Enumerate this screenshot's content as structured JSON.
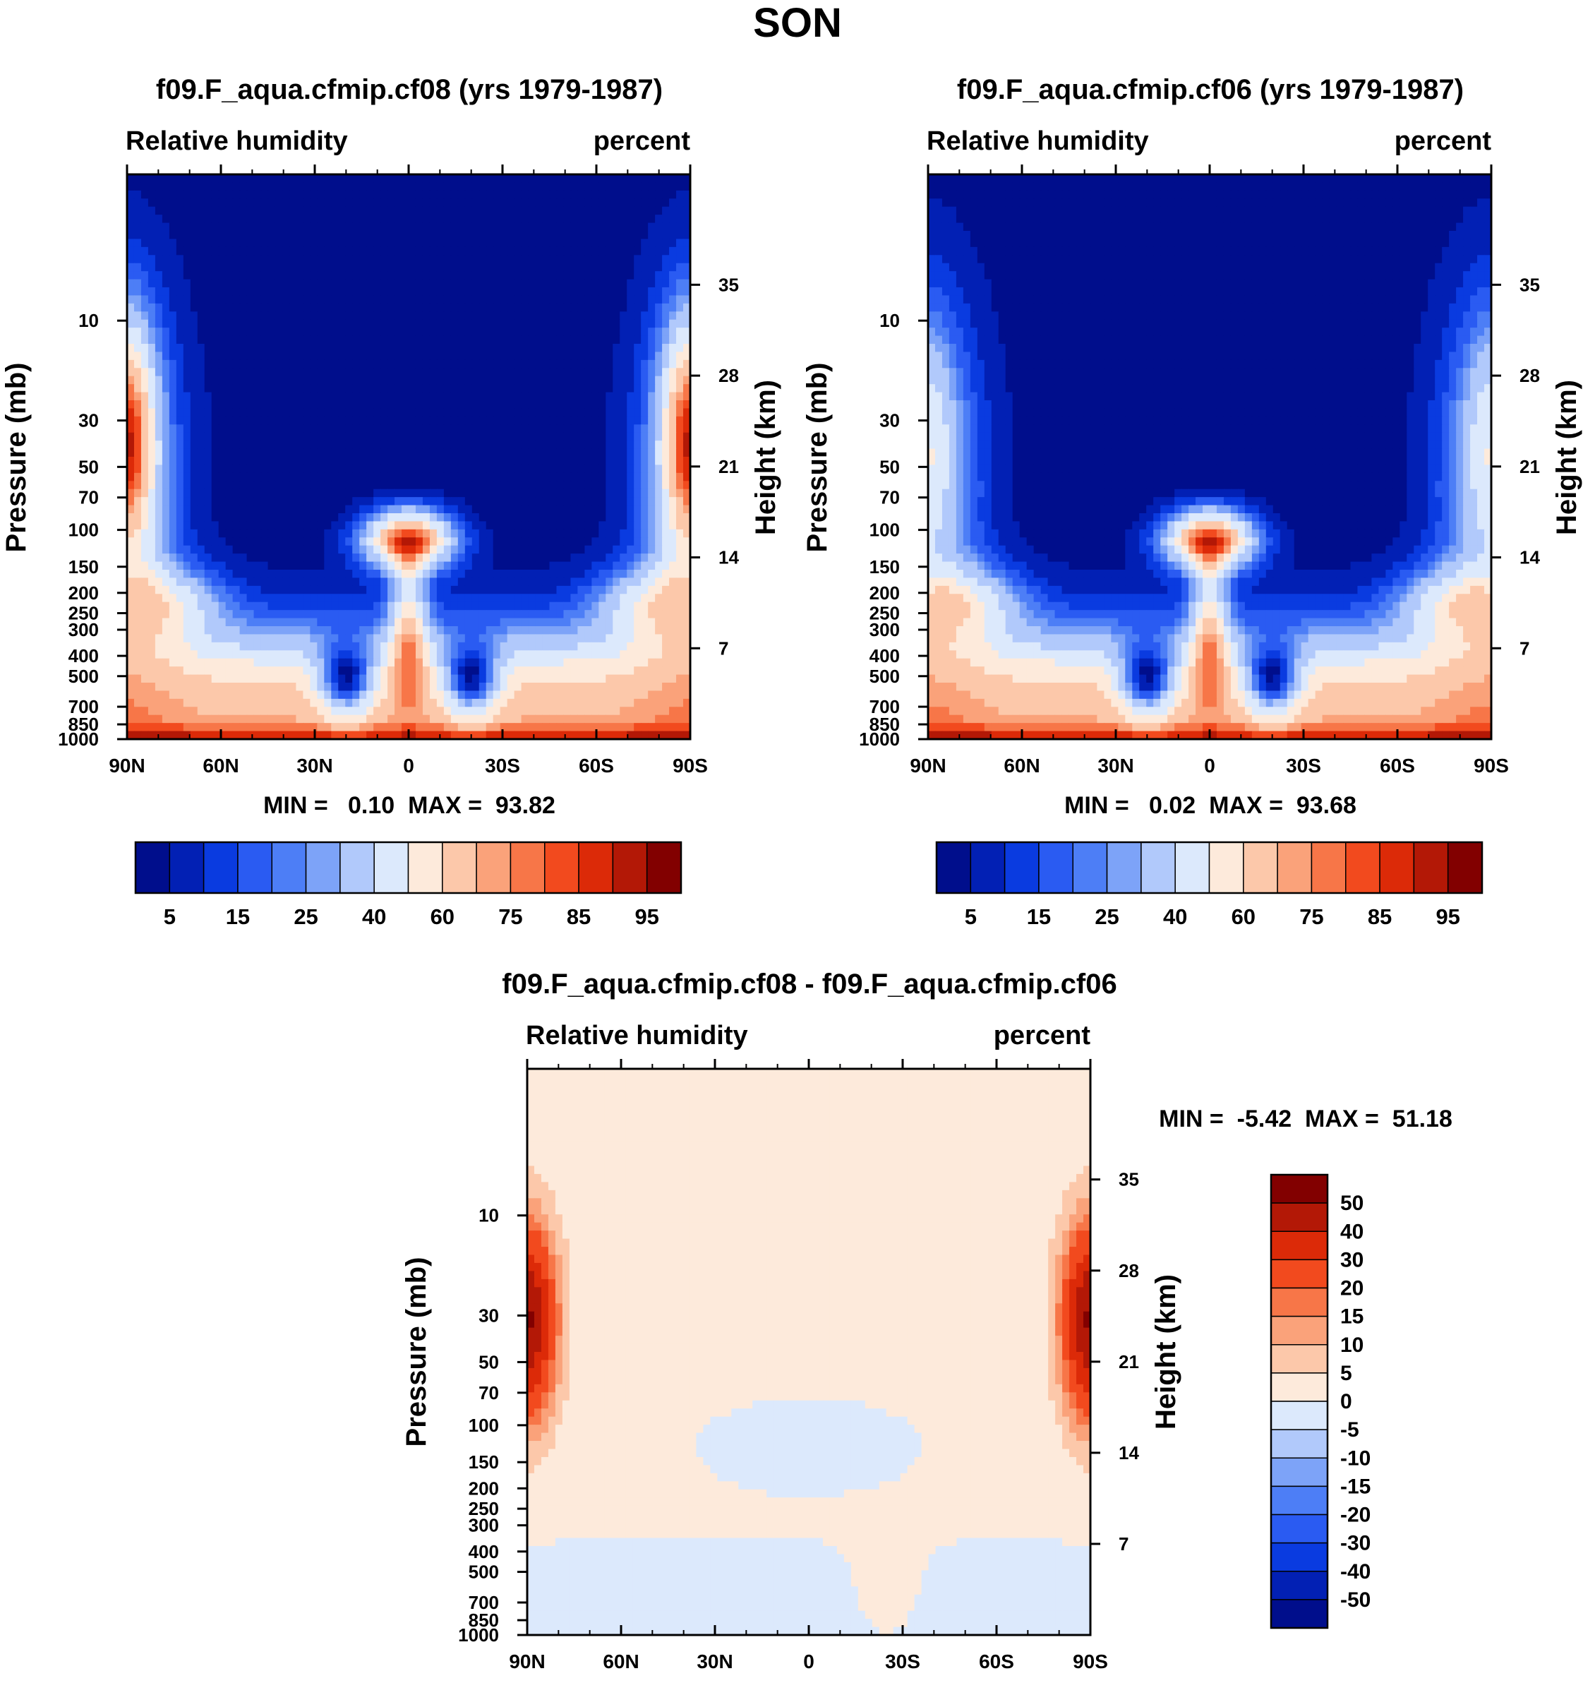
{
  "figure": {
    "season": "SON"
  },
  "colors": {
    "abs_palette": [
      "#000e8c",
      "#0220b4",
      "#0a3be0",
      "#2a5bf2",
      "#4d7ef6",
      "#7da3f8",
      "#b1c9fb",
      "#dce9fc",
      "#fdeadb",
      "#fcc8aa",
      "#faa27a",
      "#f77648",
      "#f24a1e",
      "#dc2a08",
      "#b31806",
      "#820000"
    ],
    "diff_palette": [
      "#000e8c",
      "#0220b4",
      "#0a3be0",
      "#2a5bf2",
      "#4d7ef6",
      "#7da3f8",
      "#b1c9fb",
      "#dce9fc",
      "#fdeadb",
      "#fcc8aa",
      "#faa27a",
      "#f77648",
      "#f24a1e",
      "#dc2a08",
      "#b31806",
      "#820000"
    ]
  },
  "chart_data": [
    {
      "type": "heatmap",
      "field": "cf08",
      "title": "f09.F_aqua.cfmip.cf08 (yrs 1979-1987)",
      "left_string": "Relative humidity",
      "right_string": "percent",
      "ylabel": "Pressure (mb)",
      "ylabel_right": "Height (km)",
      "x_ticks": [
        "90N",
        "60N",
        "30N",
        "0",
        "30S",
        "60S",
        "90S"
      ],
      "y_ticks": [
        "10",
        "30",
        "50",
        "70",
        "100",
        "150",
        "200",
        "250",
        "300",
        "400",
        "500",
        "700",
        "850",
        "1000"
      ],
      "y_values": [
        10,
        30,
        50,
        70,
        100,
        150,
        200,
        250,
        300,
        400,
        500,
        700,
        850,
        1000
      ],
      "height_ticks": [
        "35",
        "28",
        "21",
        "14",
        "7"
      ],
      "height_values": [
        35,
        28,
        21,
        14,
        7
      ],
      "x_range": [
        90,
        -90
      ],
      "p_range": [
        2,
        1000
      ],
      "stats": "MIN =   0.10  MAX =  93.82",
      "min": 0.1,
      "max": 93.82,
      "levels": [
        5,
        10,
        15,
        20,
        25,
        30,
        40,
        50,
        60,
        70,
        75,
        80,
        85,
        90,
        95
      ],
      "colorbar_labels": [
        "5",
        "15",
        "25",
        "40",
        "60",
        "75",
        "85",
        "95"
      ]
    },
    {
      "type": "heatmap",
      "field": "cf06",
      "title": "f09.F_aqua.cfmip.cf06 (yrs 1979-1987)",
      "left_string": "Relative humidity",
      "right_string": "percent",
      "ylabel": "Pressure (mb)",
      "ylabel_right": "Height (km)",
      "x_ticks": [
        "90N",
        "60N",
        "30N",
        "0",
        "30S",
        "60S",
        "90S"
      ],
      "y_ticks": [
        "10",
        "30",
        "50",
        "70",
        "100",
        "150",
        "200",
        "250",
        "300",
        "400",
        "500",
        "700",
        "850",
        "1000"
      ],
      "y_values": [
        10,
        30,
        50,
        70,
        100,
        150,
        200,
        250,
        300,
        400,
        500,
        700,
        850,
        1000
      ],
      "height_ticks": [
        "35",
        "28",
        "21",
        "14",
        "7"
      ],
      "height_values": [
        35,
        28,
        21,
        14,
        7
      ],
      "x_range": [
        90,
        -90
      ],
      "p_range": [
        2,
        1000
      ],
      "stats": "MIN =   0.02  MAX =  93.68",
      "min": 0.02,
      "max": 93.68,
      "levels": [
        5,
        10,
        15,
        20,
        25,
        30,
        40,
        50,
        60,
        70,
        75,
        80,
        85,
        90,
        95
      ],
      "colorbar_labels": [
        "5",
        "15",
        "25",
        "40",
        "60",
        "75",
        "85",
        "95"
      ]
    },
    {
      "type": "heatmap",
      "field": "diff",
      "title": "f09.F_aqua.cfmip.cf08 - f09.F_aqua.cfmip.cf06",
      "left_string": "Relative humidity",
      "right_string": "percent",
      "ylabel": "Pressure (mb)",
      "ylabel_right": "Height (km)",
      "x_ticks": [
        "90N",
        "60N",
        "30N",
        "0",
        "30S",
        "60S",
        "90S"
      ],
      "y_ticks": [
        "10",
        "30",
        "50",
        "70",
        "100",
        "150",
        "200",
        "250",
        "300",
        "400",
        "500",
        "700",
        "850",
        "1000"
      ],
      "y_values": [
        10,
        30,
        50,
        70,
        100,
        150,
        200,
        250,
        300,
        400,
        500,
        700,
        850,
        1000
      ],
      "height_ticks": [
        "35",
        "28",
        "21",
        "14",
        "7"
      ],
      "height_values": [
        35,
        28,
        21,
        14,
        7
      ],
      "x_range": [
        90,
        -90
      ],
      "p_range": [
        2,
        1000
      ],
      "stats": "MIN =  -5.42  MAX =  51.18",
      "min": -5.42,
      "max": 51.18,
      "levels": [
        -50,
        -40,
        -30,
        -20,
        -15,
        -10,
        -5,
        0,
        5,
        10,
        15,
        20,
        30,
        40,
        50
      ],
      "colorbar_labels": [
        "50",
        "40",
        "30",
        "20",
        "15",
        "10",
        "5",
        "0",
        "-5",
        "-10",
        "-15",
        "-20",
        "-30",
        "-40",
        "-50"
      ]
    }
  ]
}
